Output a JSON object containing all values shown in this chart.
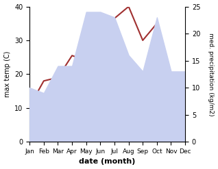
{
  "months": [
    "Jan",
    "Feb",
    "Mar",
    "Apr",
    "May",
    "Jun",
    "Jul",
    "Aug",
    "Sep",
    "Oct",
    "Nov",
    "Dec"
  ],
  "temperature": [
    10.5,
    18.0,
    19.0,
    25.5,
    24.0,
    29.0,
    36.5,
    40.0,
    30.0,
    35.0,
    19.0,
    11.5
  ],
  "precipitation": [
    10.0,
    9.0,
    14.0,
    14.0,
    24.0,
    24.0,
    23.0,
    16.0,
    13.0,
    23.0,
    13.0,
    13.0
  ],
  "temp_color": "#a03030",
  "precip_fill_color": "#c8d0f0",
  "temp_ylim": [
    0,
    40
  ],
  "precip_ylim": [
    0,
    25
  ],
  "temp_yticks": [
    0,
    10,
    20,
    30,
    40
  ],
  "precip_yticks": [
    0,
    5,
    10,
    15,
    20,
    25
  ],
  "xlabel": "date (month)",
  "ylabel_left": "max temp (C)",
  "ylabel_right": "med. precipitation (kg/m2)",
  "figsize": [
    3.18,
    2.47
  ],
  "dpi": 100
}
